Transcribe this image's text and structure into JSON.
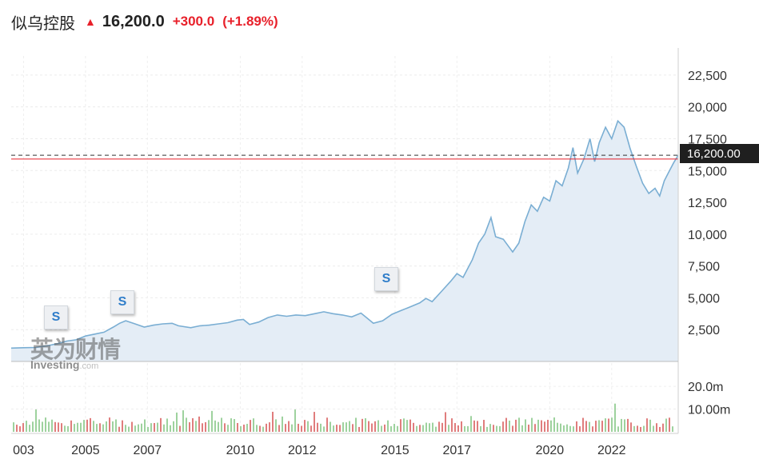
{
  "header": {
    "name": "似乌控股",
    "up_icon": "arrow-up-icon",
    "price": "16,200.0",
    "change": "+300.0",
    "change_pct": "(+1.89%)"
  },
  "colors": {
    "line": "#7aaed3",
    "area": "#e4edf6",
    "up": "#e8202a",
    "volume_up": "#e07d7d",
    "volume_down": "#9ed29e",
    "last_price_box": "#1f1f1f"
  },
  "watermark": {
    "cn": "英为财情",
    "brand": "Investing",
    "suffix": ".com"
  },
  "split_markers": [
    {
      "label": "S",
      "year": 2004.3
    },
    {
      "label": "S",
      "year": 2006.2
    },
    {
      "label": "S",
      "year": 2014.4
    }
  ],
  "last_price_label": "16,200.00",
  "chart_data": {
    "type": "area",
    "xlim": [
      2002.6,
      2023.4
    ],
    "ylim": [
      0,
      24000
    ],
    "price_ticks": [
      2500,
      5000,
      7500,
      10000,
      12500,
      15000,
      17500,
      20000,
      22500
    ],
    "price_tick_labels": [
      "2,500",
      "5,000",
      "7,500",
      "10,000",
      "12,500",
      "15,000",
      "17,500",
      "20,000",
      "22,500"
    ],
    "x_tick_labels": [
      {
        "year": 2003,
        "label": "003"
      },
      {
        "year": 2005,
        "label": "2005"
      },
      {
        "year": 2007,
        "label": "2007"
      },
      {
        "year": 2010,
        "label": "2010"
      },
      {
        "year": 2012,
        "label": "2012"
      },
      {
        "year": 2015,
        "label": "2015"
      },
      {
        "year": 2017,
        "label": "2017"
      },
      {
        "year": 2020,
        "label": "2020"
      },
      {
        "year": 2022,
        "label": "2022"
      }
    ],
    "last_price": 16200,
    "reference_price": 15900,
    "series": [
      {
        "values": [
          [
            2002.6,
            1050
          ],
          [
            2003.0,
            1080
          ],
          [
            2003.4,
            1100
          ],
          [
            2003.8,
            1250
          ],
          [
            2004.1,
            1400
          ],
          [
            2004.4,
            1600
          ],
          [
            2004.7,
            1700
          ],
          [
            2005.0,
            2000
          ],
          [
            2005.3,
            2150
          ],
          [
            2005.6,
            2300
          ],
          [
            2005.9,
            2700
          ],
          [
            2006.1,
            3000
          ],
          [
            2006.3,
            3200
          ],
          [
            2006.6,
            2950
          ],
          [
            2006.9,
            2700
          ],
          [
            2007.2,
            2850
          ],
          [
            2007.5,
            2950
          ],
          [
            2007.8,
            3000
          ],
          [
            2008.0,
            2800
          ],
          [
            2008.4,
            2650
          ],
          [
            2008.7,
            2800
          ],
          [
            2009.0,
            2850
          ],
          [
            2009.3,
            2950
          ],
          [
            2009.6,
            3050
          ],
          [
            2009.9,
            3250
          ],
          [
            2010.1,
            3300
          ],
          [
            2010.3,
            2900
          ],
          [
            2010.6,
            3100
          ],
          [
            2010.9,
            3450
          ],
          [
            2011.2,
            3650
          ],
          [
            2011.5,
            3550
          ],
          [
            2011.8,
            3650
          ],
          [
            2012.1,
            3600
          ],
          [
            2012.4,
            3750
          ],
          [
            2012.7,
            3900
          ],
          [
            2013.0,
            3750
          ],
          [
            2013.3,
            3650
          ],
          [
            2013.6,
            3500
          ],
          [
            2013.9,
            3800
          ],
          [
            2014.1,
            3400
          ],
          [
            2014.3,
            3000
          ],
          [
            2014.6,
            3200
          ],
          [
            2014.9,
            3700
          ],
          [
            2015.2,
            4000
          ],
          [
            2015.5,
            4300
          ],
          [
            2015.8,
            4600
          ],
          [
            2016.0,
            4950
          ],
          [
            2016.2,
            4700
          ],
          [
            2016.5,
            5500
          ],
          [
            2016.8,
            6300
          ],
          [
            2017.0,
            6900
          ],
          [
            2017.2,
            6600
          ],
          [
            2017.5,
            8000
          ],
          [
            2017.7,
            9300
          ],
          [
            2017.9,
            10000
          ],
          [
            2018.1,
            11300
          ],
          [
            2018.25,
            9800
          ],
          [
            2018.5,
            9600
          ],
          [
            2018.8,
            8600
          ],
          [
            2019.0,
            9300
          ],
          [
            2019.2,
            11000
          ],
          [
            2019.4,
            12300
          ],
          [
            2019.6,
            11800
          ],
          [
            2019.8,
            12900
          ],
          [
            2020.0,
            12600
          ],
          [
            2020.2,
            14200
          ],
          [
            2020.4,
            13800
          ],
          [
            2020.6,
            15200
          ],
          [
            2020.75,
            16800
          ],
          [
            2020.9,
            14800
          ],
          [
            2021.1,
            15900
          ],
          [
            2021.3,
            17500
          ],
          [
            2021.45,
            15700
          ],
          [
            2021.6,
            17200
          ],
          [
            2021.8,
            18400
          ],
          [
            2022.0,
            17500
          ],
          [
            2022.2,
            18900
          ],
          [
            2022.4,
            18400
          ],
          [
            2022.6,
            16700
          ],
          [
            2022.8,
            15300
          ],
          [
            2023.0,
            14000
          ],
          [
            2023.2,
            13200
          ],
          [
            2023.4,
            13600
          ],
          [
            2023.55,
            13000
          ],
          [
            2023.7,
            14200
          ],
          [
            2023.85,
            14900
          ],
          [
            2024.0,
            15600
          ],
          [
            2024.15,
            16200
          ]
        ]
      }
    ],
    "volume": {
      "ticks": [
        10000000,
        20000000
      ],
      "tick_labels": [
        "10.00m",
        "20.0m"
      ]
    }
  }
}
